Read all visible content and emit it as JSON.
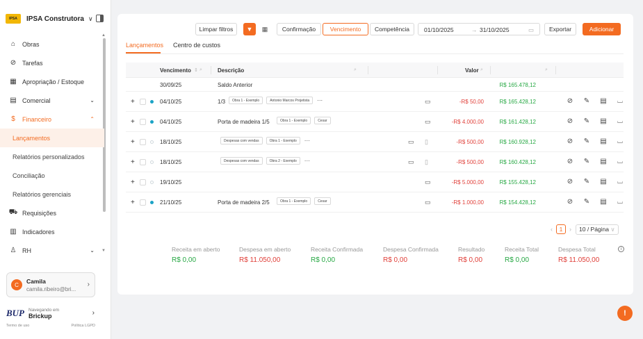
{
  "sidebar": {
    "company_name": "IPSA Construtora",
    "logo_text": "IPSA",
    "nav": [
      {
        "label": "Obras",
        "icon": "building-icon"
      },
      {
        "label": "Tarefas",
        "icon": "check-circle-icon"
      },
      {
        "label": "Apropriação / Estoque",
        "icon": "grid-icon"
      },
      {
        "label": "Comercial",
        "icon": "cash-icon"
      },
      {
        "label": "Financeiro",
        "icon": "dollar-icon"
      }
    ],
    "financeiro_sub": [
      {
        "label": "Lançamentos"
      },
      {
        "label": "Relatórios personalizados"
      },
      {
        "label": "Conciliação"
      },
      {
        "label": "Relatórios gerenciais"
      }
    ],
    "nav_bottom": [
      {
        "label": "Requisições",
        "icon": "cart-icon"
      },
      {
        "label": "Indicadores",
        "icon": "bar-chart-icon"
      },
      {
        "label": "RH",
        "icon": "person-icon"
      }
    ],
    "user": {
      "initial": "C",
      "name": "Camila",
      "email": "camila.ribeiro@bri..."
    },
    "brickup": {
      "logo": "BUP",
      "line1": "Navegando em",
      "line2": "Brickup"
    },
    "footer": {
      "terms": "Termo de uso",
      "privacy": "Política LGPD"
    }
  },
  "toolbar": {
    "clear_filters": "Limpar filtros",
    "confirmacao": "Confirmação",
    "vencimento": "Vencimento",
    "competencia": "Competência",
    "date_from": "01/10/2025",
    "date_arrow": "→",
    "date_to": "31/10/2025",
    "export": "Exportar",
    "add": "Adicionar"
  },
  "tabs": [
    "Lançamentos",
    "Centro de custos"
  ],
  "table": {
    "headers": {
      "vencimento": "Vencimento",
      "descricao": "Descrição",
      "valor": "Valor"
    },
    "saldo": {
      "date": "30/09/25",
      "desc": "Saldo Anterior",
      "saldo": "R$ 165.478,12"
    },
    "rows": [
      {
        "date": "04/10/25",
        "desc": "1/3",
        "tags": [
          "Obra 1 - Exemplo",
          "Antonio Marcos Projetista"
        ],
        "more": "···",
        "valor": "-R$ 50,00",
        "saldo": "R$ 165.428,12"
      },
      {
        "date": "04/10/25",
        "desc": "Porta de madeira 1/5",
        "tags": [
          "Obra 1 - Exemplo",
          "Cesar"
        ],
        "more": "",
        "valor": "-R$ 4.000,00",
        "saldo": "R$ 161.428,12"
      },
      {
        "date": "18/10/25",
        "desc": "",
        "tags": [
          "Despesas com vendas",
          "Obra 1 - Exemplo"
        ],
        "more": "···",
        "valor": "-R$ 500,00",
        "saldo": "R$ 160.928,12"
      },
      {
        "date": "18/10/25",
        "desc": "",
        "tags": [
          "Despesas com vendas",
          "Obra 2 - Exemplo"
        ],
        "more": "···",
        "valor": "-R$ 500,00",
        "saldo": "R$ 160.428,12"
      },
      {
        "date": "19/10/25",
        "desc": "",
        "tags": [],
        "more": "",
        "valor": "-R$ 5.000,00",
        "saldo": "R$ 155.428,12"
      },
      {
        "date": "21/10/25",
        "desc": "Porta de madeira 2/5",
        "tags": [
          "Obra 1 - Exemplo",
          "Cesar"
        ],
        "more": "",
        "valor": "-R$ 1.000,00",
        "saldo": "R$ 154.428,12"
      }
    ]
  },
  "pager": {
    "page": "1",
    "size": "10 / Página"
  },
  "totals": [
    {
      "label": "Receita em aberto",
      "value": "R$ 0,00",
      "color": "green"
    },
    {
      "label": "Despesa em aberto",
      "value": "R$ 11.050,00",
      "color": "red"
    },
    {
      "label": "Receita Confirmada",
      "value": "R$ 0,00",
      "color": "green"
    },
    {
      "label": "Despesa Confirmada",
      "value": "R$ 0,00",
      "color": "red"
    },
    {
      "label": "Resultado",
      "value": "R$ 0,00",
      "color": "red"
    },
    {
      "label": "Receita Total",
      "value": "R$ 0,00",
      "color": "green"
    },
    {
      "label": "Despesa Total",
      "value": "R$ 11.050,00",
      "color": "red"
    }
  ],
  "colors": {
    "accent": "#f36b21",
    "positive": "#27a844",
    "negative": "#e0403a",
    "status_dot": "#1ba3c6"
  }
}
